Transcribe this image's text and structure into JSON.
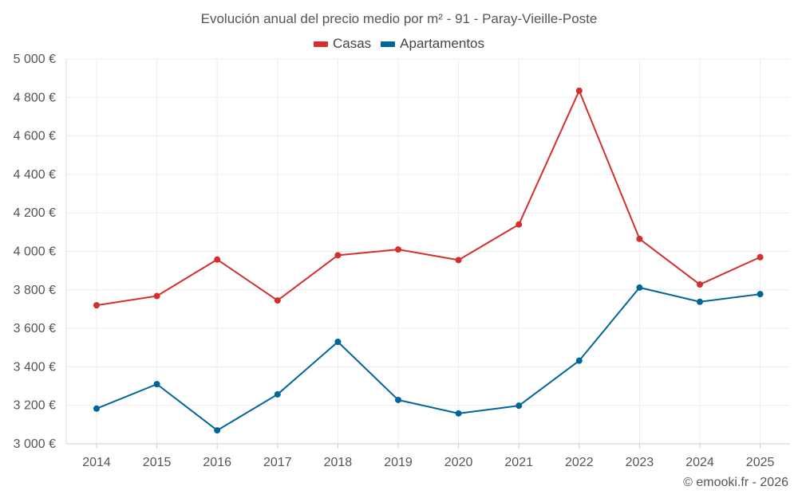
{
  "chart_data": {
    "type": "line",
    "title": "Evolución anual del precio medio por m² - 91 - Paray-Vieille-Poste",
    "xlabel": "",
    "ylabel": "",
    "categories": [
      "2014",
      "2015",
      "2016",
      "2017",
      "2018",
      "2019",
      "2020",
      "2021",
      "2022",
      "2023",
      "2024",
      "2025"
    ],
    "ylim": [
      3000,
      5000
    ],
    "yticks": [
      3000,
      3200,
      3400,
      3600,
      3800,
      4000,
      4200,
      4400,
      4600,
      4800,
      5000
    ],
    "ytick_labels": [
      "3 000 €",
      "3 200 €",
      "3 400 €",
      "3 600 €",
      "3 800 €",
      "4 000 €",
      "4 200 €",
      "4 400 €",
      "4 600 €",
      "4 800 €",
      "5 000 €"
    ],
    "grid": true,
    "legend_position": "top-center",
    "series": [
      {
        "name": "Casas",
        "color": "#d32f2f",
        "values": [
          3720,
          3768,
          3958,
          3745,
          3980,
          4010,
          3955,
          4140,
          4835,
          4065,
          3828,
          3970
        ]
      },
      {
        "name": "Apartamentos",
        "color": "#006699",
        "values": [
          3183,
          3310,
          3070,
          3257,
          3530,
          3228,
          3158,
          3198,
          3432,
          3812,
          3738,
          3778
        ]
      }
    ]
  },
  "footer": {
    "credit": "© emooki.fr - 2026"
  }
}
